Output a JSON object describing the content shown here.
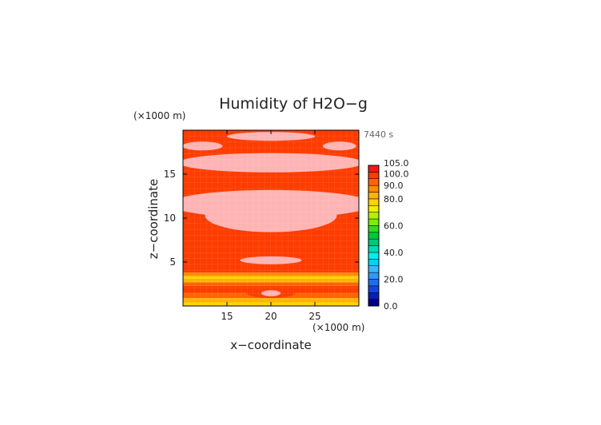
{
  "chart_data": {
    "type": "heatmap",
    "title": "Humidity of H2O−g",
    "xlabel": "x−coordinate",
    "ylabel": "z−coordinate",
    "x_unit": "(×1000 m)",
    "y_unit": "(×1000 m)",
    "time_label": "7440 s",
    "xlim": [
      10,
      30
    ],
    "ylim": [
      0,
      20
    ],
    "x_ticks": [
      "15",
      "20",
      "25"
    ],
    "y_ticks": [
      "5",
      "10",
      "15"
    ],
    "colorbar": {
      "ticks": [
        "0.0",
        "20.0",
        "40.0",
        "60.0",
        "80.0",
        "90.0",
        "100.0",
        "105.0"
      ],
      "levels": [
        0,
        5,
        10,
        15,
        20,
        25,
        30,
        35,
        40,
        45,
        50,
        55,
        60,
        65,
        70,
        75,
        80,
        85,
        90,
        95,
        100,
        105
      ],
      "colors": [
        "#00008c",
        "#0a1eb4",
        "#1446dc",
        "#1e6ef0",
        "#3296ff",
        "#3cb4ff",
        "#00d2ff",
        "#00f0f0",
        "#00dcb4",
        "#00c878",
        "#00c83c",
        "#32dc1e",
        "#78f000",
        "#b4f000",
        "#f0f000",
        "#ffd200",
        "#ffb400",
        "#ff8c00",
        "#ff6400",
        "#ff3c00",
        "#ff1414",
        "#ffffff"
      ]
    },
    "bands": [
      {
        "z": [
          0.0,
          0.4
        ],
        "value": 79
      },
      {
        "z": [
          0.4,
          0.9
        ],
        "value": 84
      },
      {
        "z": [
          0.9,
          1.5
        ],
        "value": 92
      },
      {
        "z": [
          1.5,
          2.3
        ],
        "value": 97
      },
      {
        "z": [
          2.3,
          2.7
        ],
        "value": 91
      },
      {
        "z": [
          2.7,
          3.1
        ],
        "value": 82
      },
      {
        "z": [
          3.1,
          3.4
        ],
        "value": 77
      },
      {
        "z": [
          3.4,
          3.8
        ],
        "value": 85
      },
      {
        "z": [
          3.8,
          20.0
        ],
        "value": 99
      }
    ],
    "pockets": [
      {
        "shape": "ellipse",
        "cx": 20.0,
        "cz": 19.3,
        "rx": 5.0,
        "rz": 0.5,
        "value": 101
      },
      {
        "shape": "ellipse",
        "cx": 12.2,
        "cz": 18.2,
        "rx": 2.3,
        "rz": 0.5,
        "value": 101
      },
      {
        "shape": "ellipse",
        "cx": 27.8,
        "cz": 18.2,
        "rx": 1.9,
        "rz": 0.5,
        "value": 101
      },
      {
        "shape": "ellipse",
        "cx": 20.0,
        "cz": 16.3,
        "rx": 10.5,
        "rz": 1.1,
        "value": 101
      },
      {
        "shape": "ellipse",
        "cx": 20.0,
        "cz": 11.6,
        "rx": 11.5,
        "rz": 1.6,
        "value": 101
      },
      {
        "shape": "ellipse",
        "cx": 20.0,
        "cz": 10.3,
        "rx": 7.5,
        "rz": 1.9,
        "value": 101
      },
      {
        "shape": "ellipse",
        "cx": 20.0,
        "cz": 5.2,
        "rx": 3.5,
        "rz": 0.45,
        "value": 101
      },
      {
        "shape": "ellipse",
        "cx": 20.0,
        "cz": 1.5,
        "rx": 2.8,
        "rz": 0.6,
        "value": 95
      },
      {
        "shape": "ellipse",
        "cx": 20.0,
        "cz": 1.45,
        "rx": 1.1,
        "rz": 0.35,
        "value": 101
      }
    ]
  }
}
